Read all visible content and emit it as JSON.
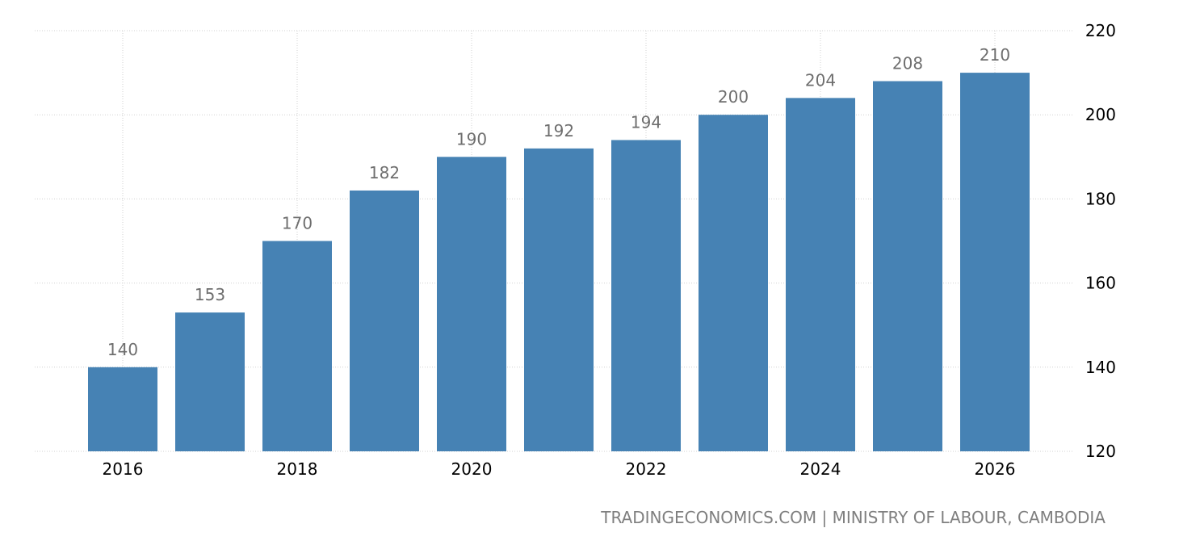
{
  "chart_data": {
    "type": "bar",
    "title": "",
    "xlabel": "",
    "ylabel": "",
    "categories": [
      "2016",
      "2017",
      "2018",
      "2019",
      "2020",
      "2021",
      "2022",
      "2023",
      "2024",
      "2025",
      "2026"
    ],
    "values": [
      140,
      153,
      170,
      182,
      190,
      192,
      194,
      200,
      204,
      208,
      210
    ],
    "x_tick_labels": [
      "2016",
      "2018",
      "2020",
      "2022",
      "2024",
      "2026"
    ],
    "y_ticks": [
      120,
      140,
      160,
      180,
      200,
      220
    ],
    "ylim": [
      120,
      220
    ],
    "y_axis_side": "right",
    "grid": true,
    "legend": "none",
    "bar_color": "#4682b4",
    "data_label_color": "#6e6e6e"
  },
  "source_text": "TRADINGECONOMICS.COM | MINISTRY OF LABOUR, CAMBODIA"
}
